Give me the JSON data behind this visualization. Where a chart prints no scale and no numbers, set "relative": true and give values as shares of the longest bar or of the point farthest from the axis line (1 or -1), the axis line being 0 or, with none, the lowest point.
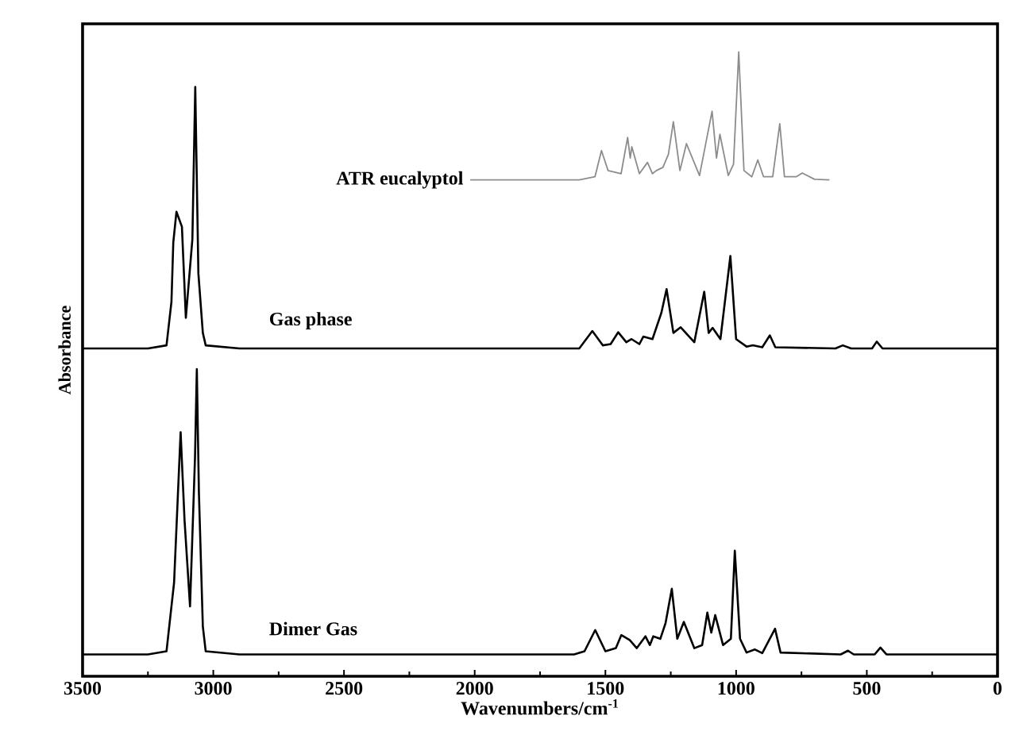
{
  "chart_data": {
    "type": "line",
    "relative": true,
    "marker": "none",
    "xlabel": "Wavenumbers/cm$^{-1}$",
    "ylabel": "Absorbance",
    "xlim": [
      3500,
      0
    ],
    "xticks": [
      3500,
      3000,
      2500,
      2000,
      1500,
      1000,
      500,
      0
    ],
    "series": [
      {
        "name": "ATR eucalyptol",
        "color": "#8c8c8c",
        "x": [
          2017,
          1600,
          1540,
          1515,
          1490,
          1440,
          1415,
          1405,
          1399,
          1370,
          1339,
          1320,
          1305,
          1280,
          1259,
          1240,
          1215,
          1190,
          1140,
          1092,
          1075,
          1062,
          1030,
          1010,
          990,
          970,
          940,
          917,
          895,
          860,
          833,
          815,
          770,
          747,
          700,
          643
        ],
        "values": [
          0.795,
          0.795,
          0.8,
          0.842,
          0.81,
          0.805,
          0.863,
          0.83,
          0.848,
          0.805,
          0.823,
          0.805,
          0.81,
          0.815,
          0.836,
          0.888,
          0.81,
          0.853,
          0.802,
          0.905,
          0.83,
          0.868,
          0.802,
          0.82,
          1.0,
          0.81,
          0.8,
          0.827,
          0.8,
          0.8,
          0.885,
          0.8,
          0.8,
          0.806,
          0.796,
          0.795
        ]
      },
      {
        "name": "Gas phase",
        "color": "#000000",
        "x": [
          3500,
          3250,
          3179,
          3160,
          3153,
          3141,
          3120,
          3105,
          3080,
          3069,
          3057,
          3040,
          3029,
          2900,
          1600,
          1550,
          1510,
          1480,
          1451,
          1420,
          1400,
          1370,
          1355,
          1320,
          1286,
          1266,
          1240,
          1212,
          1160,
          1122,
          1105,
          1090,
          1060,
          1022,
          1000,
          960,
          936,
          900,
          871,
          850,
          620,
          592,
          560,
          480,
          462,
          440,
          0
        ],
        "values": [
          0.525,
          0.525,
          0.53,
          0.6,
          0.695,
          0.744,
          0.72,
          0.574,
          0.7,
          0.944,
          0.645,
          0.55,
          0.53,
          0.525,
          0.525,
          0.553,
          0.53,
          0.532,
          0.551,
          0.535,
          0.54,
          0.532,
          0.544,
          0.54,
          0.582,
          0.62,
          0.55,
          0.559,
          0.535,
          0.616,
          0.55,
          0.558,
          0.54,
          0.673,
          0.54,
          0.528,
          0.53,
          0.527,
          0.546,
          0.527,
          0.525,
          0.53,
          0.525,
          0.525,
          0.536,
          0.525,
          0.525
        ]
      },
      {
        "name": "Dimer  Gas",
        "color": "#000000",
        "x": [
          3500,
          3250,
          3179,
          3150,
          3125,
          3110,
          3089,
          3070,
          3063,
          3055,
          3040,
          3029,
          2900,
          1620,
          1580,
          1539,
          1500,
          1460,
          1439,
          1407,
          1380,
          1347,
          1330,
          1317,
          1290,
          1270,
          1246,
          1225,
          1200,
          1160,
          1130,
          1110,
          1095,
          1080,
          1050,
          1020,
          1005,
          985,
          960,
          929,
          900,
          851,
          830,
          600,
          572,
          550,
          470,
          448,
          425,
          0
        ],
        "values": [
          0.035,
          0.035,
          0.04,
          0.15,
          0.391,
          0.25,
          0.112,
          0.35,
          0.492,
          0.294,
          0.08,
          0.04,
          0.035,
          0.035,
          0.04,
          0.074,
          0.04,
          0.045,
          0.066,
          0.058,
          0.045,
          0.064,
          0.05,
          0.064,
          0.06,
          0.085,
          0.14,
          0.06,
          0.087,
          0.045,
          0.05,
          0.102,
          0.07,
          0.098,
          0.05,
          0.06,
          0.201,
          0.06,
          0.038,
          0.043,
          0.037,
          0.076,
          0.038,
          0.035,
          0.041,
          0.035,
          0.035,
          0.046,
          0.035,
          0.035
        ]
      }
    ]
  }
}
